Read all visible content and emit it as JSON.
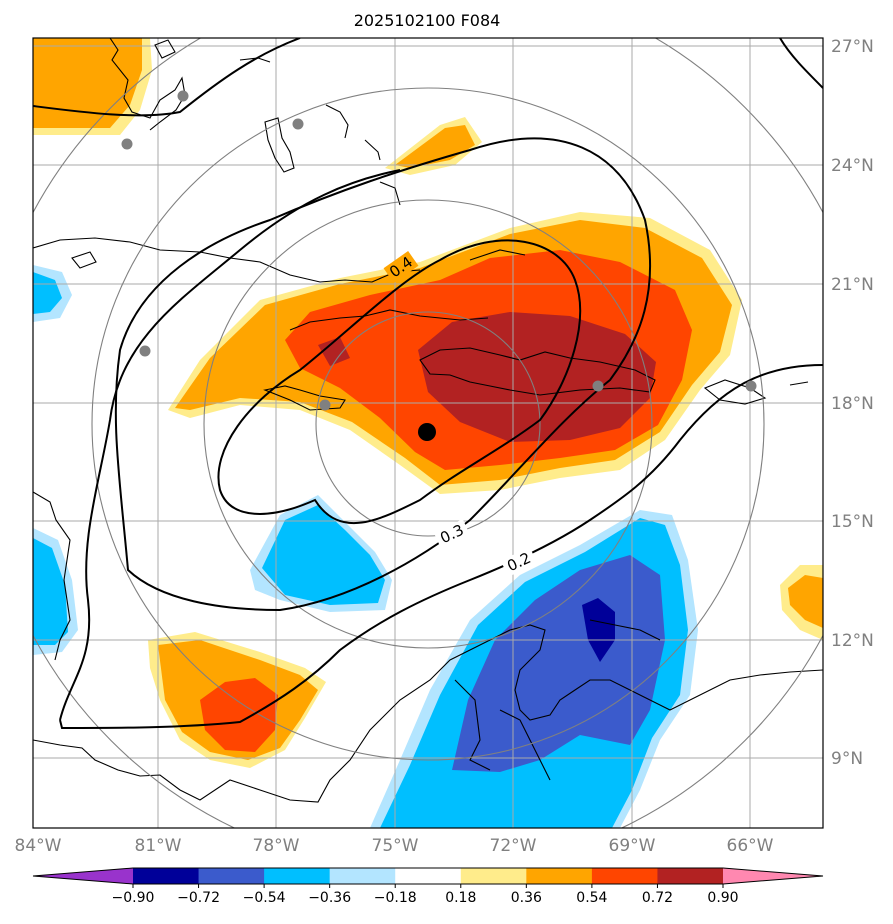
{
  "title": "2025102100 F084",
  "lat_labels": [
    "27°N",
    "24°N",
    "21°N",
    "18°N",
    "15°N",
    "12°N",
    "9°N"
  ],
  "lon_labels": [
    "84°W",
    "81°W",
    "78°W",
    "75°W",
    "72°W",
    "69°W",
    "66°W"
  ],
  "contour_labels": [
    "0.4",
    "0.3",
    "0.2"
  ],
  "colorbar": {
    "tick_labels": [
      "−0.90",
      "−0.72",
      "−0.54",
      "−0.36",
      "−0.18",
      "0.18",
      "0.36",
      "0.54",
      "0.72",
      "0.90"
    ],
    "colors": [
      "#9933cc",
      "#000099",
      "#3b5bcc",
      "#00bfff",
      "#b3e5ff",
      "#ffffff",
      "#ffec8b",
      "#ffa500",
      "#ff4500",
      "#b22222",
      "#ff88b0"
    ]
  },
  "palette": {
    "neg_090": "#000099",
    "neg_072": "#3b5bcc",
    "neg_054": "#00bfff",
    "neg_036": "#b3e5ff",
    "pos_036": "#ffec8b",
    "pos_054": "#ffa500",
    "pos_072": "#ff4500",
    "pos_090": "#b22222",
    "grid": "#aaaaaa",
    "range_ring": "#808080",
    "station": "#808080"
  }
}
